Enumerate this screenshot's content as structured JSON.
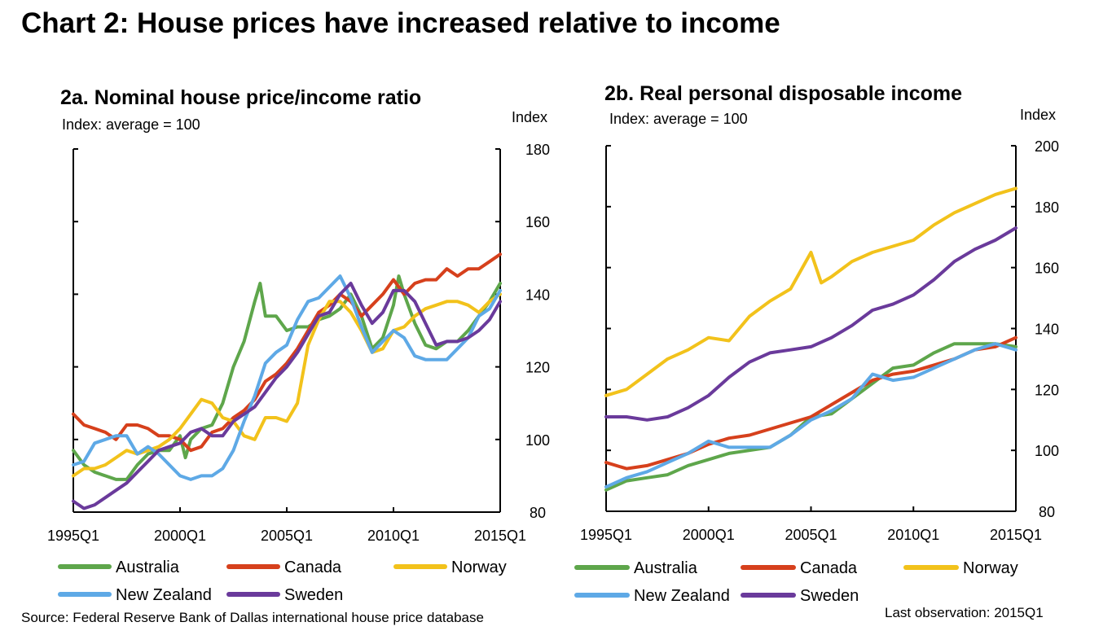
{
  "title": "Chart 2: House prices have increased relative to income",
  "source": "Source: Federal Reserve Bank of Dallas international house price database",
  "last_observation": "Last observation: 2015Q1",
  "colors": {
    "Australia": "#5ea64b",
    "Canada": "#d6401c",
    "Norway": "#f2c21b",
    "New Zealand": "#5ea9e6",
    "Sweden": "#6a3a9b"
  },
  "legend_order": [
    "Australia",
    "Canada",
    "Norway",
    "New Zealand",
    "Sweden"
  ],
  "chart_data": [
    {
      "type": "line",
      "title": "2a. Nominal house price/income ratio",
      "subtitle": "Index: average = 100",
      "ylabel": "Index",
      "yaxis_side": "right",
      "ylim": [
        80,
        180
      ],
      "yticks": [
        80,
        100,
        120,
        140,
        160,
        180
      ],
      "xlim": [
        1995.0,
        2015.0
      ],
      "xticks": [
        1995.0,
        2000.0,
        2005.0,
        2010.0,
        2015.0
      ],
      "xtick_labels": [
        "1995Q1",
        "2000Q1",
        "2005Q1",
        "2010Q1",
        "2015Q1"
      ],
      "grid": false,
      "legend": "bottom",
      "series": [
        {
          "name": "Australia",
          "x": [
            1995.0,
            1995.5,
            1996.0,
            1996.5,
            1997.0,
            1997.5,
            1998.0,
            1998.5,
            1999.0,
            1999.5,
            2000.0,
            2000.25,
            2000.5,
            2001.0,
            2001.5,
            2002.0,
            2002.5,
            2003.0,
            2003.5,
            2003.75,
            2004.0,
            2004.5,
            2005.0,
            2005.5,
            2006.0,
            2006.5,
            2007.0,
            2007.5,
            2008.0,
            2008.5,
            2009.0,
            2009.5,
            2010.0,
            2010.25,
            2010.5,
            2011.0,
            2011.5,
            2012.0,
            2012.5,
            2013.0,
            2013.5,
            2014.0,
            2014.5,
            2015.0
          ],
          "y": [
            97,
            93,
            91,
            90,
            89,
            89,
            93,
            96,
            97,
            97,
            101,
            95,
            100,
            103,
            104,
            110,
            120,
            127,
            138,
            143,
            134,
            134,
            130,
            131,
            131,
            133,
            134,
            136,
            140,
            134,
            125,
            128,
            137,
            145,
            140,
            132,
            126,
            125,
            127,
            127,
            130,
            134,
            138,
            143
          ]
        },
        {
          "name": "Canada",
          "x": [
            1995.0,
            1995.5,
            1996.0,
            1996.5,
            1997.0,
            1997.5,
            1998.0,
            1998.5,
            1999.0,
            1999.5,
            2000.0,
            2000.5,
            2001.0,
            2001.5,
            2002.0,
            2002.5,
            2003.0,
            2003.5,
            2004.0,
            2004.5,
            2005.0,
            2005.5,
            2006.0,
            2006.5,
            2007.0,
            2007.5,
            2008.0,
            2008.5,
            2009.0,
            2009.5,
            2010.0,
            2010.5,
            2011.0,
            2011.5,
            2012.0,
            2012.5,
            2013.0,
            2013.5,
            2014.0,
            2014.5,
            2015.0
          ],
          "y": [
            107,
            104,
            103,
            102,
            100,
            104,
            104,
            103,
            101,
            101,
            100,
            97,
            98,
            102,
            103,
            106,
            108,
            111,
            116,
            118,
            121,
            125,
            130,
            135,
            137,
            140,
            138,
            134,
            137,
            140,
            144,
            140,
            143,
            144,
            144,
            147,
            145,
            147,
            147,
            149,
            151
          ]
        },
        {
          "name": "Norway",
          "x": [
            1995.0,
            1995.5,
            1996.0,
            1996.5,
            1997.0,
            1997.5,
            1998.0,
            1998.5,
            1999.0,
            1999.5,
            2000.0,
            2000.5,
            2001.0,
            2001.5,
            2002.0,
            2002.5,
            2003.0,
            2003.5,
            2004.0,
            2004.5,
            2005.0,
            2005.5,
            2006.0,
            2006.5,
            2007.0,
            2007.5,
            2008.0,
            2008.5,
            2009.0,
            2009.5,
            2010.0,
            2010.5,
            2011.0,
            2011.5,
            2012.0,
            2012.5,
            2013.0,
            2013.5,
            2014.0,
            2014.5,
            2015.0
          ],
          "y": [
            90,
            92,
            92,
            93,
            95,
            97,
            96,
            97,
            98,
            100,
            103,
            107,
            111,
            110,
            106,
            105,
            101,
            100,
            106,
            106,
            105,
            110,
            126,
            133,
            138,
            138,
            135,
            130,
            124,
            125,
            130,
            131,
            134,
            136,
            137,
            138,
            138,
            137,
            135,
            138,
            140
          ]
        },
        {
          "name": "New Zealand",
          "x": [
            1995.0,
            1995.5,
            1996.0,
            1996.5,
            1997.0,
            1997.5,
            1998.0,
            1998.5,
            1999.0,
            1999.5,
            2000.0,
            2000.5,
            2001.0,
            2001.5,
            2002.0,
            2002.5,
            2003.0,
            2003.5,
            2004.0,
            2004.5,
            2005.0,
            2005.5,
            2006.0,
            2006.5,
            2007.0,
            2007.5,
            2008.0,
            2008.5,
            2009.0,
            2009.5,
            2010.0,
            2010.5,
            2011.0,
            2011.5,
            2012.0,
            2012.5,
            2013.0,
            2013.5,
            2014.0,
            2014.5,
            2015.0
          ],
          "y": [
            93,
            94,
            99,
            100,
            101,
            101,
            96,
            98,
            96,
            93,
            90,
            89,
            90,
            90,
            92,
            97,
            105,
            112,
            121,
            124,
            126,
            133,
            138,
            139,
            142,
            145,
            139,
            131,
            124,
            127,
            130,
            128,
            123,
            122,
            122,
            122,
            125,
            128,
            134,
            136,
            141
          ]
        },
        {
          "name": "Sweden",
          "x": [
            1995.0,
            1995.5,
            1996.0,
            1996.5,
            1997.0,
            1997.5,
            1998.0,
            1998.5,
            1999.0,
            1999.5,
            2000.0,
            2000.5,
            2001.0,
            2001.5,
            2002.0,
            2002.5,
            2003.0,
            2003.5,
            2004.0,
            2004.5,
            2005.0,
            2005.5,
            2006.0,
            2006.5,
            2007.0,
            2007.5,
            2008.0,
            2008.5,
            2009.0,
            2009.5,
            2010.0,
            2010.5,
            2011.0,
            2011.5,
            2012.0,
            2012.5,
            2013.0,
            2013.5,
            2014.0,
            2014.5,
            2015.0
          ],
          "y": [
            83,
            81,
            82,
            84,
            86,
            88,
            91,
            94,
            97,
            98,
            99,
            102,
            103,
            101,
            101,
            105,
            107,
            109,
            113,
            117,
            120,
            124,
            129,
            134,
            135,
            140,
            143,
            137,
            132,
            135,
            141,
            141,
            138,
            132,
            126,
            127,
            127,
            128,
            130,
            133,
            138
          ]
        }
      ]
    },
    {
      "type": "line",
      "title": "2b. Real personal disposable income",
      "subtitle": "Index: average = 100",
      "ylabel": "Index",
      "yaxis_side": "right",
      "ylim": [
        80,
        200
      ],
      "yticks": [
        80,
        100,
        120,
        140,
        160,
        180,
        200
      ],
      "xlim": [
        1995.0,
        2015.0
      ],
      "xticks": [
        1995.0,
        2000.0,
        2005.0,
        2010.0,
        2015.0
      ],
      "xtick_labels": [
        "1995Q1",
        "2000Q1",
        "2005Q1",
        "2010Q1",
        "2015Q1"
      ],
      "grid": false,
      "legend": "bottom",
      "series": [
        {
          "name": "Australia",
          "x": [
            1995.0,
            1996.0,
            1997.0,
            1998.0,
            1999.0,
            2000.0,
            2001.0,
            2002.0,
            2003.0,
            2004.0,
            2005.0,
            2006.0,
            2007.0,
            2008.0,
            2009.0,
            2010.0,
            2011.0,
            2012.0,
            2013.0,
            2014.0,
            2015.0
          ],
          "y": [
            87,
            90,
            91,
            92,
            95,
            97,
            99,
            100,
            101,
            105,
            111,
            112,
            117,
            122,
            127,
            128,
            132,
            135,
            135,
            135,
            134
          ]
        },
        {
          "name": "Canada",
          "x": [
            1995.0,
            1996.0,
            1997.0,
            1998.0,
            1999.0,
            2000.0,
            2001.0,
            2002.0,
            2003.0,
            2004.0,
            2005.0,
            2006.0,
            2007.0,
            2008.0,
            2009.0,
            2010.0,
            2011.0,
            2012.0,
            2013.0,
            2014.0,
            2015.0
          ],
          "y": [
            96,
            94,
            95,
            97,
            99,
            102,
            104,
            105,
            107,
            109,
            111,
            115,
            119,
            123,
            125,
            126,
            128,
            130,
            133,
            134,
            137
          ]
        },
        {
          "name": "Norway",
          "x": [
            1995.0,
            1996.0,
            1997.0,
            1998.0,
            1999.0,
            2000.0,
            2001.0,
            2002.0,
            2003.0,
            2004.0,
            2005.0,
            2005.5,
            2006.0,
            2007.0,
            2008.0,
            2009.0,
            2010.0,
            2011.0,
            2012.0,
            2013.0,
            2014.0,
            2015.0
          ],
          "y": [
            118,
            120,
            125,
            130,
            133,
            137,
            136,
            144,
            149,
            153,
            165,
            155,
            157,
            162,
            165,
            167,
            169,
            174,
            178,
            181,
            184,
            186
          ]
        },
        {
          "name": "New Zealand",
          "x": [
            1995.0,
            1996.0,
            1997.0,
            1998.0,
            1999.0,
            2000.0,
            2001.0,
            2002.0,
            2003.0,
            2004.0,
            2005.0,
            2006.0,
            2007.0,
            2008.0,
            2009.0,
            2010.0,
            2011.0,
            2012.0,
            2013.0,
            2014.0,
            2015.0
          ],
          "y": [
            88,
            91,
            93,
            96,
            99,
            103,
            101,
            101,
            101,
            105,
            110,
            113,
            117,
            125,
            123,
            124,
            127,
            130,
            133,
            135,
            133
          ]
        },
        {
          "name": "Sweden",
          "x": [
            1995.0,
            1996.0,
            1997.0,
            1998.0,
            1999.0,
            2000.0,
            2001.0,
            2002.0,
            2003.0,
            2004.0,
            2005.0,
            2006.0,
            2007.0,
            2008.0,
            2009.0,
            2010.0,
            2011.0,
            2012.0,
            2013.0,
            2014.0,
            2015.0
          ],
          "y": [
            111,
            111,
            110,
            111,
            114,
            118,
            124,
            129,
            132,
            133,
            134,
            137,
            141,
            146,
            148,
            151,
            156,
            162,
            166,
            169,
            173
          ]
        }
      ]
    }
  ]
}
